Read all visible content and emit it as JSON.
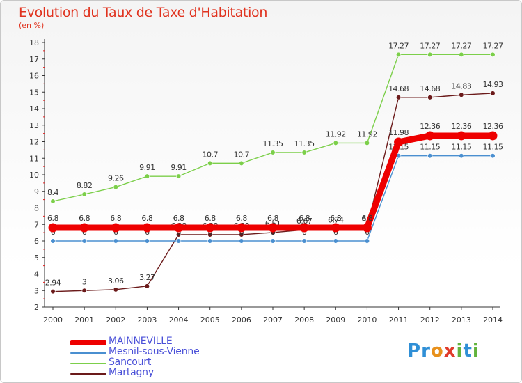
{
  "title": "Evolution du Taux de Taxe d'Habitation",
  "unit": "(en %)",
  "brand": {
    "text": "Proxiti",
    "colors": [
      "#2f8fd6",
      "#2f8fd6",
      "#e8911c",
      "#e03b2b",
      "#62b33c",
      "#2f8fd6",
      "#62b33c"
    ]
  },
  "chart_data": {
    "type": "line",
    "title": "Evolution du Taux de Taxe d'Habitation",
    "ylabel": "(en %)",
    "xlabel": "",
    "x": [
      2000,
      2001,
      2002,
      2003,
      2004,
      2005,
      2006,
      2007,
      2008,
      2009,
      2010,
      2011,
      2012,
      2013,
      2014
    ],
    "ylim": [
      2,
      18
    ],
    "yticks": [
      2,
      3,
      4,
      5,
      6,
      7,
      8,
      9,
      10,
      11,
      12,
      13,
      14,
      15,
      16,
      17,
      18
    ],
    "grid": false,
    "legend_position": "bottom-left",
    "series": [
      {
        "name": "MAINNEVILLE",
        "color": "#ee0000",
        "values": [
          6.8,
          6.8,
          6.8,
          6.8,
          6.8,
          6.8,
          6.8,
          6.8,
          6.8,
          6.8,
          6.8,
          11.98,
          12.36,
          12.36,
          12.36
        ],
        "labels": [
          "6.8",
          "6.8",
          "6.8",
          "6.8",
          "6.8",
          "6.8",
          "6.8",
          "6.8",
          "6.8",
          "6.8",
          "6.8",
          "11.98",
          "12.36",
          "12.36",
          "12.36"
        ]
      },
      {
        "name": "Mesnil-sous-Vienne",
        "color": "#4a8fd0",
        "values": [
          6,
          6,
          6,
          6,
          6,
          6,
          6,
          6,
          6,
          6,
          6,
          11.15,
          11.15,
          11.15,
          11.15
        ],
        "labels": [
          "6",
          "6",
          "6",
          "6",
          "6",
          "6",
          "6",
          "6",
          "6",
          "6",
          "6",
          "11.15",
          "11.15",
          "11.15",
          "11.15"
        ]
      },
      {
        "name": "Sancourt",
        "color": "#7ccf4a",
        "values": [
          8.4,
          8.82,
          9.26,
          9.91,
          9.91,
          10.7,
          10.7,
          11.35,
          11.35,
          11.92,
          11.92,
          17.27,
          17.27,
          17.27,
          17.27
        ],
        "labels": [
          "8.4",
          "8.82",
          "9.26",
          "9.91",
          "9.91",
          "10.7",
          "10.7",
          "11.35",
          "11.35",
          "11.92",
          "11.92",
          "17.27",
          "17.27",
          "17.27",
          "17.27"
        ]
      },
      {
        "name": "Martagny",
        "color": "#6b1a1a",
        "values": [
          2.94,
          3,
          3.06,
          3.27,
          6.38,
          6.38,
          6.38,
          6.51,
          6.67,
          6.74,
          6.8,
          14.68,
          14.68,
          14.83,
          14.93
        ],
        "labels": [
          "2.94",
          "3",
          "3.06",
          "3.27",
          "6.38",
          "6.38",
          "6.38",
          "6.51",
          "6.67",
          "6.74",
          "6.8",
          "14.68",
          "14.68",
          "14.83",
          "14.93"
        ]
      }
    ]
  }
}
